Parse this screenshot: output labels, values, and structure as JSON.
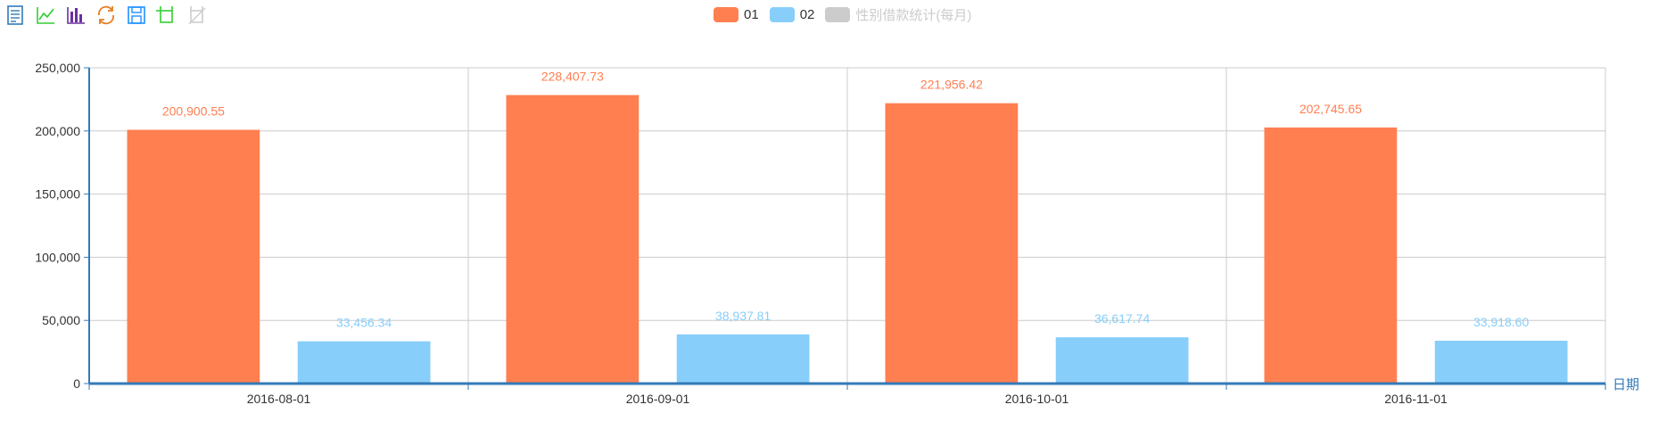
{
  "toolbox": [
    {
      "name": "data-view-icon",
      "color": "#337ab7"
    },
    {
      "name": "line-chart-icon",
      "color": "#32cd32"
    },
    {
      "name": "bar-chart-icon",
      "color": "#6a2fa0"
    },
    {
      "name": "restore-icon",
      "color": "#e67e22"
    },
    {
      "name": "save-image-icon",
      "color": "#1e90ff"
    },
    {
      "name": "data-zoom-icon",
      "color": "#32cd32"
    },
    {
      "name": "data-zoom-reset-icon",
      "color": "#cccccc"
    }
  ],
  "legend": [
    {
      "label": "01",
      "color": "#ff7f50",
      "active": true
    },
    {
      "label": "02",
      "color": "#87cefa",
      "active": true
    },
    {
      "label": "性别借款统计(每月)",
      "color": "#cccccc",
      "active": false
    }
  ],
  "chart_data": {
    "type": "bar",
    "categories": [
      "2016-08-01",
      "2016-09-01",
      "2016-10-01",
      "2016-11-01"
    ],
    "series": [
      {
        "name": "01",
        "color": "#ff7f50",
        "values": [
          200900.55,
          228407.73,
          221956.42,
          202745.65
        ],
        "labels": [
          "200,900.55",
          "228,407.73",
          "221,956.42",
          "202,745.65"
        ]
      },
      {
        "name": "02",
        "color": "#87cefa",
        "values": [
          33456.34,
          38937.81,
          36617.74,
          33918.6
        ],
        "labels": [
          "33,456.34",
          "38,937.81",
          "36,617.74",
          "33,918.60"
        ]
      }
    ],
    "xlabel": "日期",
    "ylabel": "",
    "ylim": [
      0,
      250000
    ],
    "yticks": [
      0,
      50000,
      100000,
      150000,
      200000,
      250000
    ],
    "ytick_labels": [
      "0",
      "50,000",
      "100,000",
      "150,000",
      "200,000",
      "250,000"
    ],
    "grid": true,
    "legend_position": "top-center",
    "axis_color": "#337ab7"
  }
}
